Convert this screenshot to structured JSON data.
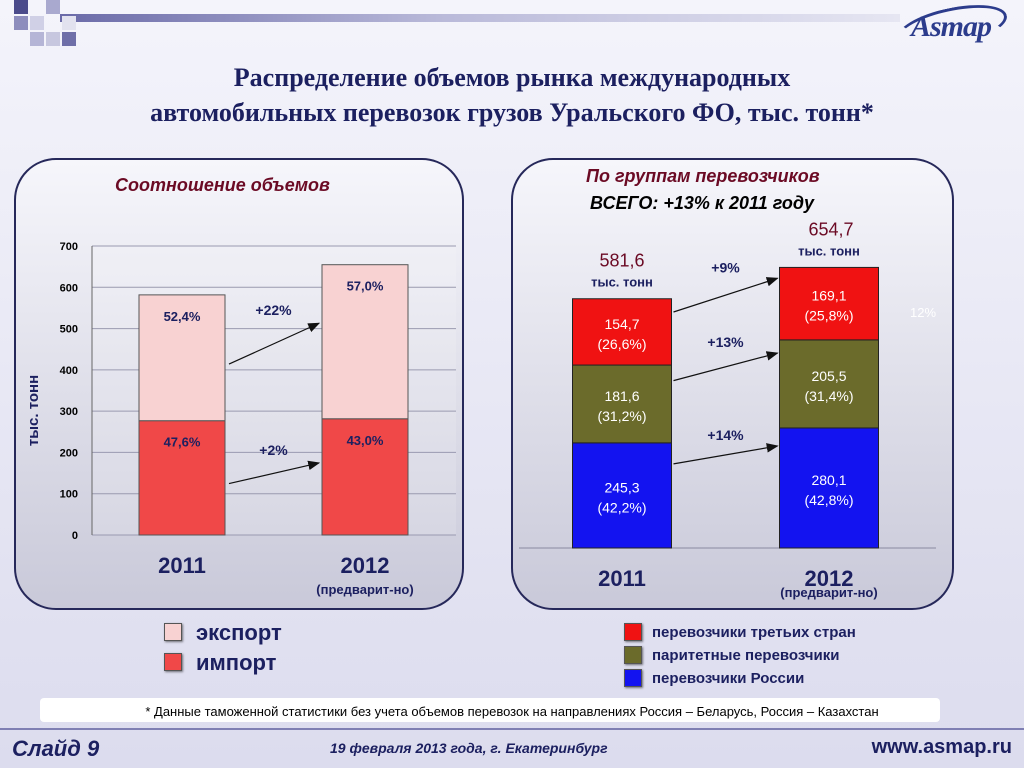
{
  "header": {
    "logo_text": "Asmap",
    "title_line1": "Распределение объемов рынка международных",
    "title_line2": "автомобильных перевозок грузов Уральского ФО, тыс. тонн*"
  },
  "colors": {
    "export": "#f8d2d2",
    "import": "#f04848",
    "third_country": "#f01212",
    "parity": "#6b6b2b",
    "russia": "#1313f0",
    "title": "#1c2060",
    "panel_head": "#6b0a24"
  },
  "left_panel": {
    "heading": "Соотношение объемов",
    "legend": [
      {
        "label": "экспорт",
        "color": "#f8d2d2"
      },
      {
        "label": "импорт",
        "color": "#f04848"
      }
    ]
  },
  "right_panel": {
    "heading": "По группам перевозчиков",
    "subheading": "ВСЕГО: +13% к 2011 году",
    "side_note": "12%",
    "legend": [
      {
        "label": "перевозчики третьих стран",
        "color": "#f01212"
      },
      {
        "label": "паритетные перевозчики",
        "color": "#6b6b2b"
      },
      {
        "label": "перевозчики России",
        "color": "#1313f0"
      }
    ]
  },
  "chart_data": [
    {
      "type": "bar",
      "stacked": true,
      "title": "Соотношение объемов",
      "ylabel": "тыс. тонн",
      "ylim": [
        0,
        700
      ],
      "yticks": [
        0,
        100,
        200,
        300,
        400,
        500,
        600,
        700
      ],
      "categories": [
        "2011",
        "2012"
      ],
      "category_notes": [
        "",
        "(предварит-но)"
      ],
      "series": [
        {
          "name": "импорт",
          "shares": [
            47.6,
            43.0
          ],
          "share_labels": [
            "47,6%",
            "43,0%"
          ],
          "color": "#f04848"
        },
        {
          "name": "экспорт",
          "shares": [
            52.4,
            57.0
          ],
          "share_labels": [
            "52,4%",
            "57,0%"
          ],
          "color": "#f8d2d2"
        }
      ],
      "totals": [
        581.6,
        654.7
      ],
      "growth": [
        {
          "series": "экспорт",
          "label": "+22%"
        },
        {
          "series": "импорт",
          "label": "+2%"
        }
      ]
    },
    {
      "type": "bar",
      "stacked": true,
      "title": "По группам перевозчиков",
      "categories": [
        "2011",
        "2012"
      ],
      "category_notes": [
        "",
        "(предварит-но)"
      ],
      "total_labels": [
        {
          "value": "581,6",
          "unit": "тыс. тонн"
        },
        {
          "value": "654,7",
          "unit": "тыс. тонн"
        }
      ],
      "series": [
        {
          "name": "перевозчики России",
          "values": [
            245.3,
            280.1
          ],
          "value_labels": [
            "245,3",
            "280,1"
          ],
          "share_labels": [
            "(42,2%)",
            "(42,8%)"
          ],
          "color": "#1313f0"
        },
        {
          "name": "паритетные перевозчики",
          "values": [
            181.6,
            205.5
          ],
          "value_labels": [
            "181,6",
            "205,5"
          ],
          "share_labels": [
            "(31,2%)",
            "(31,4%)"
          ],
          "color": "#6b6b2b"
        },
        {
          "name": "перевозчики третьих стран",
          "values": [
            154.7,
            169.1
          ],
          "value_labels": [
            "154,7",
            "169,1"
          ],
          "share_labels": [
            "(26,6%)",
            "(25,8%)"
          ],
          "color": "#f01212"
        }
      ],
      "growth": [
        {
          "series": "перевозчики третьих стран",
          "label": "+9%"
        },
        {
          "series": "паритетные перевозчики",
          "label": "+13%"
        },
        {
          "series": "перевозчики России",
          "label": "+14%"
        }
      ]
    }
  ],
  "footer": {
    "footnote": "* Данные таможенной статистики без учета объемов перевозок на направлениях Россия – Беларусь, Россия – Казахстан",
    "slide_number": "Слайд 9",
    "date_place": "19 февраля 2013 года,   г. Екатеринбург",
    "website": "www.asmap.ru"
  }
}
